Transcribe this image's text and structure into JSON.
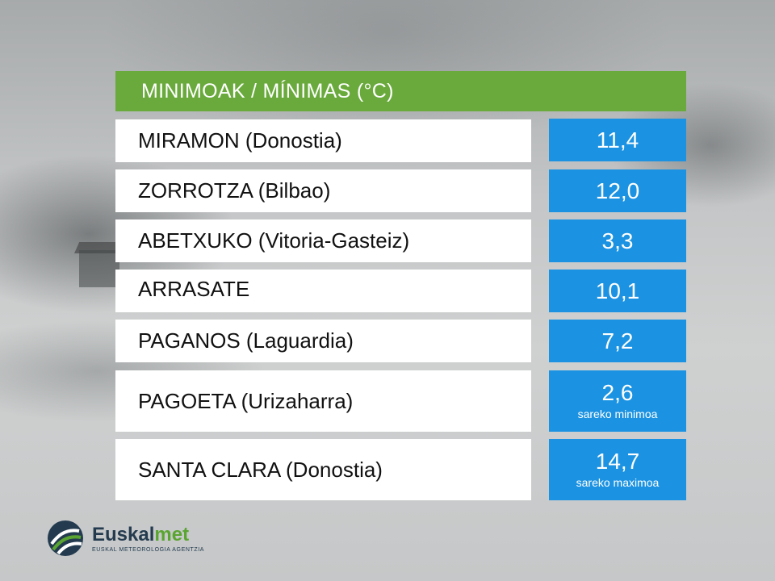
{
  "title": "MINIMOAK / MÍNIMAS (°C)",
  "colors": {
    "title_bg": "#6aaa3c",
    "value_bg": "#1c93e2",
    "station_bg": "#ffffff"
  },
  "rows": [
    {
      "station": "MIRAMON (Donostia)",
      "value": "11,4",
      "note": ""
    },
    {
      "station": "ZORROTZA (Bilbao)",
      "value": "12,0",
      "note": ""
    },
    {
      "station": "ABETXUKO (Vitoria-Gasteiz)",
      "value": "3,3",
      "note": ""
    },
    {
      "station": "ARRASATE",
      "value": "10,1",
      "note": ""
    },
    {
      "station": "PAGANOS (Laguardia)",
      "value": "7,2",
      "note": ""
    },
    {
      "station": "PAGOETA (Urizaharra)",
      "value": "2,6",
      "note": "sareko minimoa"
    },
    {
      "station": "SANTA CLARA (Donostia)",
      "value": "14,7",
      "note": "sareko maximoa"
    }
  ],
  "logo": {
    "name_main": "Euskal",
    "name_accent": "met",
    "subtitle": "EUSKAL METEOROLOGIA AGENTZIA",
    "icon": "euskalmet-logo-icon"
  }
}
